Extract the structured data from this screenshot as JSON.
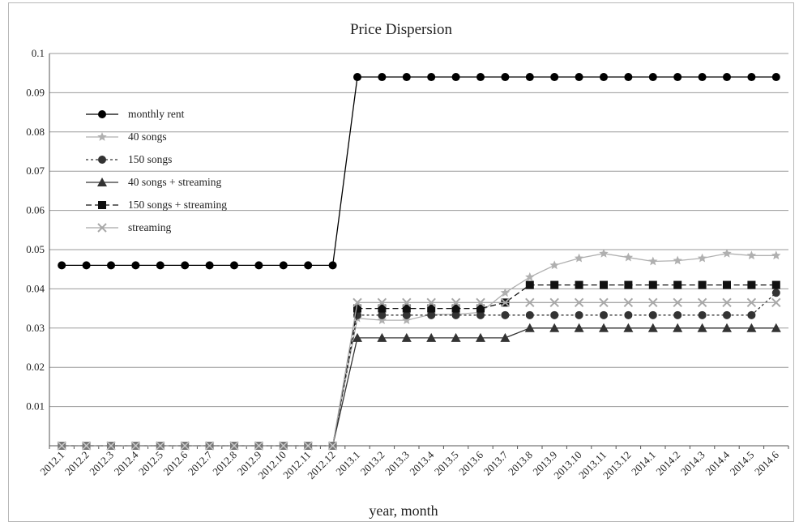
{
  "chart_data": {
    "type": "line",
    "title": "Price Dispersion",
    "xlabel": "year, month",
    "ylabel": "",
    "ylim": [
      0,
      0.1
    ],
    "y_ticks": [
      "0.01",
      "0.02",
      "0.03",
      "0.04",
      "0.05",
      "0.06",
      "0.07",
      "0.08",
      "0.09",
      "0.1"
    ],
    "grid": "horizontal",
    "legend_position": "left",
    "categories": [
      "2012.1",
      "2012.2",
      "2012.3",
      "2012.4",
      "2012.5",
      "2012.6",
      "2012.7",
      "2012.8",
      "2012.9",
      "2012.10",
      "2012.11",
      "2012.12",
      "2013.1",
      "2013.2",
      "2013.3",
      "2013.4",
      "2013.5",
      "2013.6",
      "2013.7",
      "2013.8",
      "2013.9",
      "2013.10",
      "2013.11",
      "2013.12",
      "2014.1",
      "2014.2",
      "2014.3",
      "2014.4",
      "2014.5",
      "2014.6"
    ],
    "series": [
      {
        "name": "monthly rent",
        "marker": "circle",
        "color": "#000000",
        "dash": "",
        "values": [
          0.046,
          0.046,
          0.046,
          0.046,
          0.046,
          0.046,
          0.046,
          0.046,
          0.046,
          0.046,
          0.046,
          0.046,
          0.094,
          0.094,
          0.094,
          0.094,
          0.094,
          0.094,
          0.094,
          0.094,
          0.094,
          0.094,
          0.094,
          0.094,
          0.094,
          0.094,
          0.094,
          0.094,
          0.094,
          0.094
        ]
      },
      {
        "name": "40 songs",
        "marker": "star",
        "color": "#b0b0b0",
        "dash": "",
        "values": [
          0,
          0,
          0,
          0,
          0,
          0,
          0,
          0,
          0,
          0,
          0,
          0,
          0.0325,
          0.032,
          0.032,
          0.0335,
          0.0335,
          0.034,
          0.039,
          0.043,
          0.046,
          0.0478,
          0.049,
          0.048,
          0.047,
          0.0472,
          0.0478,
          0.049,
          0.0485,
          0.0485
        ]
      },
      {
        "name": "150 songs",
        "marker": "circle",
        "color": "#333333",
        "dash": "3,3",
        "values": [
          0,
          0,
          0,
          0,
          0,
          0,
          0,
          0,
          0,
          0,
          0,
          0,
          0.0333,
          0.0333,
          0.0333,
          0.0333,
          0.0333,
          0.0333,
          0.0333,
          0.0333,
          0.0333,
          0.0333,
          0.0333,
          0.0333,
          0.0333,
          0.0333,
          0.0333,
          0.0333,
          0.0333,
          0.039
        ]
      },
      {
        "name": "40 songs + streaming",
        "marker": "triangle",
        "color": "#333333",
        "dash": "",
        "values": [
          0,
          0,
          0,
          0,
          0,
          0,
          0,
          0,
          0,
          0,
          0,
          0,
          0.0275,
          0.0275,
          0.0275,
          0.0275,
          0.0275,
          0.0275,
          0.0275,
          0.03,
          0.03,
          0.03,
          0.03,
          0.03,
          0.03,
          0.03,
          0.03,
          0.03,
          0.03,
          0.03
        ]
      },
      {
        "name": "150 songs + streaming",
        "marker": "square",
        "color": "#111111",
        "dash": "7,4",
        "values": [
          0,
          0,
          0,
          0,
          0,
          0,
          0,
          0,
          0,
          0,
          0,
          0,
          0.035,
          0.035,
          0.035,
          0.035,
          0.035,
          0.035,
          0.0365,
          0.041,
          0.041,
          0.041,
          0.041,
          0.041,
          0.041,
          0.041,
          0.041,
          0.041,
          0.041,
          0.041
        ]
      },
      {
        "name": "streaming",
        "marker": "x",
        "color": "#a8a8a8",
        "dash": "",
        "values": [
          0,
          0,
          0,
          0,
          0,
          0,
          0,
          0,
          0,
          0,
          0,
          0,
          0.0365,
          0.0365,
          0.0365,
          0.0365,
          0.0365,
          0.0365,
          0.0365,
          0.0365,
          0.0365,
          0.0365,
          0.0365,
          0.0365,
          0.0365,
          0.0365,
          0.0365,
          0.0365,
          0.0365,
          0.0365
        ]
      }
    ]
  }
}
